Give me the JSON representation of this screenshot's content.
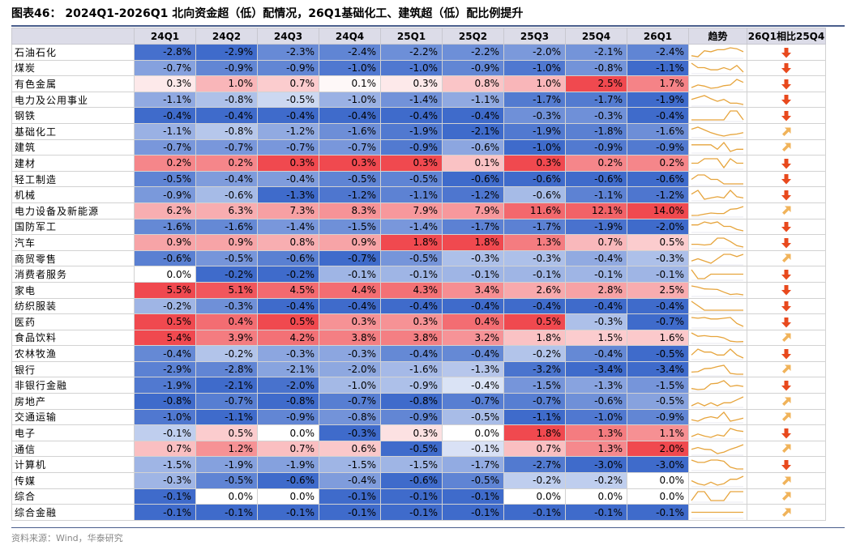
{
  "title": "图表46： 2024Q1-2026Q1 北向资金超（低）配情况，26Q1基础化工、建筑超（低）配比例提升",
  "source": "资料来源：Wind，华泰研究",
  "colors": {
    "down_arrow": "#e8491d",
    "up_arrow": "#f0b35a",
    "spark_line": "#e6a43c",
    "positive": "#f0494f",
    "negative": "#3f6bcb"
  },
  "chart_data": {
    "type": "table",
    "columns": [
      "",
      "24Q1",
      "24Q2",
      "24Q3",
      "24Q4",
      "25Q1",
      "25Q2",
      "25Q3",
      "25Q4",
      "26Q1",
      "趋势",
      "26Q1相比25Q4"
    ],
    "rows": [
      {
        "industry": "石油石化",
        "values": [
          -2.8,
          -2.9,
          -2.3,
          -2.4,
          -2.2,
          -2.2,
          -2.0,
          -2.1,
          -2.4
        ],
        "change": "down"
      },
      {
        "industry": "煤炭",
        "values": [
          -0.7,
          -0.9,
          -0.9,
          -1.0,
          -1.0,
          -0.9,
          -1.0,
          -0.8,
          -1.1
        ],
        "change": "down"
      },
      {
        "industry": "有色金属",
        "values": [
          0.3,
          1.0,
          0.7,
          0.1,
          0.3,
          0.8,
          1.0,
          2.5,
          1.7
        ],
        "change": "down"
      },
      {
        "industry": "电力及公用事业",
        "values": [
          -1.1,
          -0.8,
          -0.5,
          -1.0,
          -1.4,
          -1.1,
          -1.7,
          -1.7,
          -1.9
        ],
        "change": "down"
      },
      {
        "industry": "钢铁",
        "values": [
          -0.4,
          -0.4,
          -0.4,
          -0.4,
          -0.4,
          -0.4,
          -0.3,
          -0.3,
          -0.4
        ],
        "change": "down"
      },
      {
        "industry": "基础化工",
        "values": [
          -1.1,
          -0.8,
          -1.2,
          -1.6,
          -1.9,
          -2.1,
          -1.9,
          -1.8,
          -1.6
        ],
        "change": "up"
      },
      {
        "industry": "建筑",
        "values": [
          -0.7,
          -0.7,
          -0.7,
          -0.7,
          -0.9,
          -0.6,
          -1.0,
          -0.9,
          -0.9
        ],
        "change": "up"
      },
      {
        "industry": "建材",
        "values": [
          0.2,
          0.2,
          0.3,
          0.3,
          0.3,
          0.1,
          0.3,
          0.2,
          0.2
        ],
        "change": "down"
      },
      {
        "industry": "轻工制造",
        "values": [
          -0.5,
          -0.4,
          -0.4,
          -0.5,
          -0.5,
          -0.6,
          -0.6,
          -0.6,
          -0.6
        ],
        "change": "down"
      },
      {
        "industry": "机械",
        "values": [
          -0.9,
          -0.6,
          -1.3,
          -1.2,
          -1.1,
          -1.2,
          -0.6,
          -1.1,
          -1.2
        ],
        "change": "down"
      },
      {
        "industry": "电力设备及新能源",
        "values": [
          6.2,
          6.3,
          7.3,
          8.3,
          7.9,
          7.9,
          11.6,
          12.1,
          14.0
        ],
        "change": "up"
      },
      {
        "industry": "国防军工",
        "values": [
          -1.6,
          -1.6,
          -1.4,
          -1.5,
          -1.4,
          -1.7,
          -1.7,
          -1.9,
          -2.0
        ],
        "change": "down"
      },
      {
        "industry": "汽车",
        "values": [
          0.9,
          0.9,
          0.8,
          0.9,
          1.8,
          1.8,
          1.3,
          0.7,
          0.5
        ],
        "change": "down"
      },
      {
        "industry": "商贸零售",
        "values": [
          -0.6,
          -0.5,
          -0.6,
          -0.7,
          -0.5,
          -0.3,
          -0.3,
          -0.4,
          -0.3
        ],
        "change": "up"
      },
      {
        "industry": "消费者服务",
        "values": [
          0.0,
          -0.2,
          -0.2,
          -0.1,
          -0.1,
          -0.1,
          -0.1,
          -0.1,
          -0.1
        ],
        "change": "down"
      },
      {
        "industry": "家电",
        "values": [
          5.5,
          5.1,
          4.5,
          4.4,
          4.3,
          3.4,
          2.6,
          2.8,
          2.5
        ],
        "change": "down"
      },
      {
        "industry": "纺织服装",
        "values": [
          -0.2,
          -0.3,
          -0.4,
          -0.4,
          -0.4,
          -0.4,
          -0.4,
          -0.4,
          -0.4
        ],
        "change": "down"
      },
      {
        "industry": "医药",
        "values": [
          0.5,
          0.4,
          0.5,
          0.3,
          0.3,
          0.4,
          0.5,
          -0.3,
          -0.7
        ],
        "change": "down"
      },
      {
        "industry": "食品饮料",
        "values": [
          5.4,
          3.9,
          4.2,
          3.8,
          3.8,
          3.2,
          1.8,
          1.5,
          1.6
        ],
        "change": "up"
      },
      {
        "industry": "农林牧渔",
        "values": [
          -0.4,
          -0.2,
          -0.3,
          -0.3,
          -0.4,
          -0.4,
          -0.2,
          -0.4,
          -0.5
        ],
        "change": "down"
      },
      {
        "industry": "银行",
        "values": [
          -2.9,
          -2.8,
          -2.1,
          -2.0,
          -1.6,
          -1.3,
          -3.2,
          -3.4,
          -3.4
        ],
        "change": "up"
      },
      {
        "industry": "非银行金融",
        "values": [
          -1.9,
          -2.1,
          -2.0,
          -1.0,
          -0.9,
          -0.4,
          -1.5,
          -1.3,
          -1.5
        ],
        "change": "down"
      },
      {
        "industry": "房地产",
        "values": [
          -0.8,
          -0.7,
          -0.8,
          -0.7,
          -0.8,
          -0.7,
          -0.7,
          -0.6,
          -0.5
        ],
        "change": "up"
      },
      {
        "industry": "交通运输",
        "values": [
          -1.0,
          -1.1,
          -0.9,
          -0.8,
          -0.9,
          -0.5,
          -1.1,
          -1.0,
          -0.9
        ],
        "change": "up"
      },
      {
        "industry": "电子",
        "values": [
          -0.1,
          0.5,
          0.0,
          -0.3,
          0.3,
          0.0,
          1.8,
          1.3,
          1.1
        ],
        "change": "down"
      },
      {
        "industry": "通信",
        "values": [
          0.7,
          1.2,
          0.7,
          0.6,
          -0.5,
          -0.1,
          0.7,
          1.3,
          2.0
        ],
        "change": "up"
      },
      {
        "industry": "计算机",
        "values": [
          -1.5,
          -1.9,
          -1.9,
          -1.5,
          -1.5,
          -1.7,
          -2.7,
          -3.0,
          -3.0
        ],
        "change": "down"
      },
      {
        "industry": "传媒",
        "values": [
          -0.3,
          -0.5,
          -0.6,
          -0.4,
          -0.6,
          -0.5,
          -0.2,
          -0.2,
          0.0
        ],
        "change": "up"
      },
      {
        "industry": "综合",
        "values": [
          -0.1,
          0.0,
          0.0,
          -0.1,
          -0.1,
          -0.1,
          0.0,
          0.0,
          0.0
        ],
        "change": "up"
      },
      {
        "industry": "综合金融",
        "values": [
          -0.1,
          -0.1,
          -0.1,
          -0.1,
          -0.1,
          -0.1,
          -0.1,
          -0.1,
          -0.1
        ],
        "change": "up"
      }
    ]
  }
}
